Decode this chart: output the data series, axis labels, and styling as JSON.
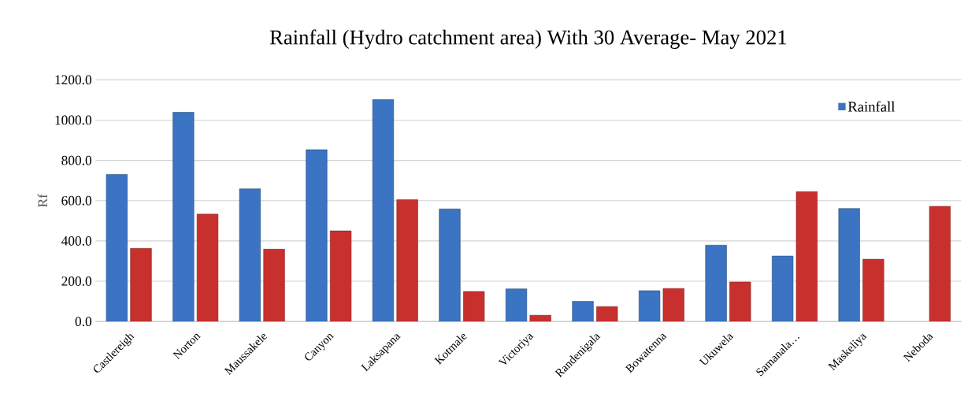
{
  "chart_data": {
    "type": "bar",
    "title": "Rainfall (Hydro catchment area) With 30 Average- May 2021",
    "ylabel": "Rf",
    "categories": [
      "Castlereigh",
      "Norton",
      "Maussakele",
      "Canyon",
      "Laksapana",
      "Kotmale",
      "Victoriya",
      "Randenigala",
      "Bowatenna",
      "Ukuwela",
      "Samanala…",
      "Maskeliya",
      "Neboda"
    ],
    "series": [
      {
        "name": "Rainfall",
        "color": "#3a74c2",
        "values": [
          730,
          1039,
          659,
          853,
          1103,
          559,
          162,
          100,
          153,
          379,
          325,
          561,
          null
        ]
      },
      {
        "color": "#c8302e",
        "values": [
          363,
          533,
          359,
          450,
          605,
          149,
          31,
          74,
          164,
          196,
          645,
          309,
          572
        ]
      }
    ],
    "ylim": [
      0,
      1200
    ],
    "yticks": [
      {
        "value": 0,
        "label": "0.0"
      },
      {
        "value": 200,
        "label": "200.0"
      },
      {
        "value": 400,
        "label": "400.0"
      },
      {
        "value": 600,
        "label": "600.0"
      },
      {
        "value": 800,
        "label": "800.0"
      },
      {
        "value": 1000,
        "label": "1000.0"
      },
      {
        "value": 1200,
        "label": "1200.0"
      }
    ],
    "grid": "y",
    "legend": "top right"
  }
}
